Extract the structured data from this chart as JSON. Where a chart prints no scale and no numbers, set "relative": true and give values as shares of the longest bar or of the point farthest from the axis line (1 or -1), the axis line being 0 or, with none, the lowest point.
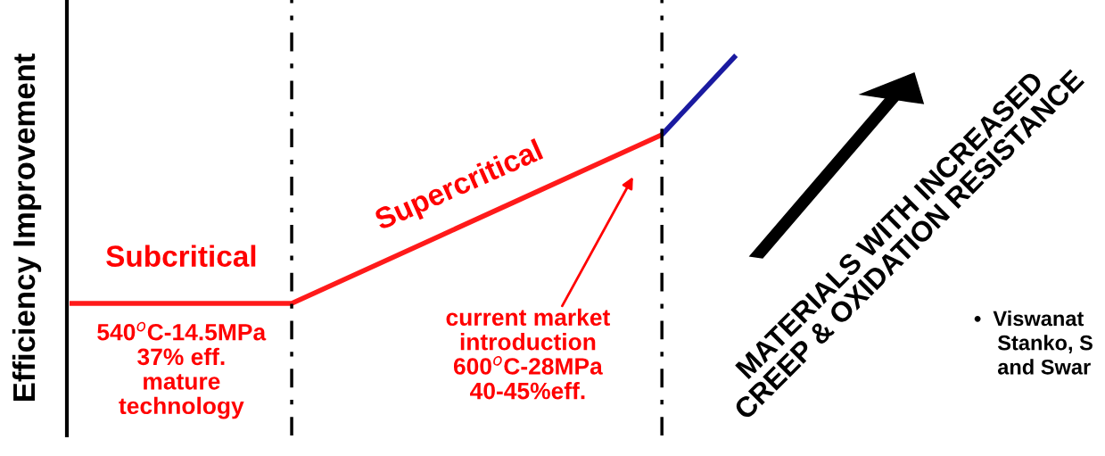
{
  "chart_data": {
    "type": "line",
    "relative": true,
    "ylabel": "Efficiency Improvement",
    "legend": false,
    "marker": "none",
    "line_style": "solid",
    "categories": [
      null,
      null,
      null,
      null,
      null,
      null,
      null,
      null,
      null,
      null
    ],
    "series": [
      {
        "color": "#ff1a1a",
        "values": [
          0,
          0,
          0,
          0,
          0.136,
          0.272,
          0.408,
          0.544,
          0.68,
          null
        ]
      },
      {
        "color": "#1a1aa0",
        "values": [
          null,
          null,
          null,
          null,
          null,
          null,
          null,
          null,
          0.68,
          1
        ]
      }
    ],
    "annotations": [
      "Subcritical",
      "Supercritical",
      "540$^{o}$C-14.5MPa\n37% eff.\nmature\ntechnology",
      "current market\nintroduction\n600$^{o}$C-28MPa\n40-45%eff.",
      "MATERIALS WITH INCREASED\nCREEP & OXIDATION RESISTANCE",
      "•  Viswanat\n    Stanko, S\n    and Swar"
    ]
  }
}
